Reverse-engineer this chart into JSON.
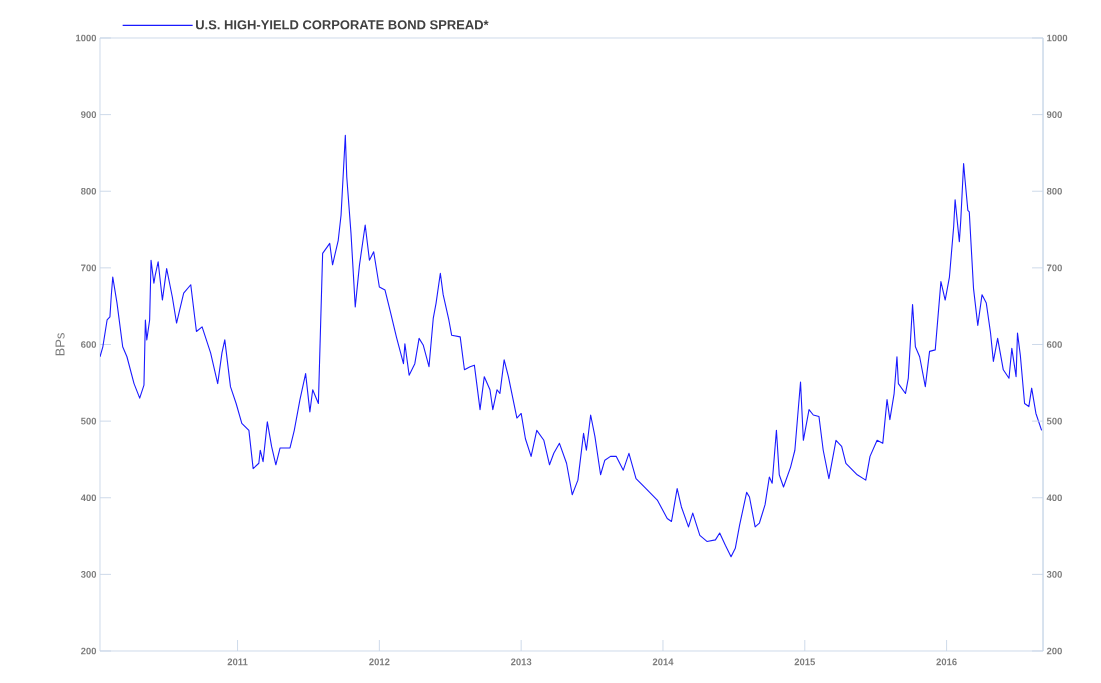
{
  "chart_data": {
    "type": "line",
    "ylabel": "BPs",
    "legend": "top left",
    "marker": "none",
    "line_style": "solid",
    "grid": false,
    "xlim": [
      2010.03,
      2016.68
    ],
    "xticks": [
      2011,
      2012,
      2013,
      2014,
      2015,
      2016
    ],
    "ylim": [
      200,
      1000
    ],
    "yticks": [
      200,
      300,
      400,
      500,
      600,
      700,
      800,
      900,
      1000
    ],
    "y2lim": [
      200,
      1000
    ],
    "y2ticks": [
      200,
      300,
      400,
      500,
      600,
      700,
      800,
      900,
      1000
    ],
    "series": [
      {
        "name": "U.S. HIGH-YIELD CORPORATE BOND SPREAD*",
        "color": "#1a1aff",
        "x": [
          2010.03,
          2010.05,
          2010.08,
          2010.1,
          2010.11,
          2010.12,
          2010.15,
          2010.19,
          2010.22,
          2010.27,
          2010.31,
          2010.34,
          2010.35,
          2010.36,
          2010.38,
          2010.39,
          2010.41,
          2010.42,
          2010.44,
          2010.47,
          2010.5,
          2010.54,
          2010.57,
          2010.62,
          2010.67,
          2010.71,
          2010.75,
          2010.81,
          2010.86,
          2010.89,
          2010.91,
          2010.95,
          2010.99,
          2011.03,
          2011.08,
          2011.11,
          2011.15,
          2011.16,
          2011.18,
          2011.21,
          2011.24,
          2011.27,
          2011.3,
          2011.37,
          2011.4,
          2011.44,
          2011.48,
          2011.51,
          2011.53,
          2011.57,
          2011.6,
          2011.65,
          2011.67,
          2011.71,
          2011.73,
          2011.76,
          2011.77,
          2011.8,
          2011.83,
          2011.85,
          2011.86,
          2011.9,
          2011.93,
          2011.96,
          2012.0,
          2012.04,
          2012.08,
          2012.12,
          2012.17,
          2012.18,
          2012.21,
          2012.25,
          2012.28,
          2012.31,
          2012.35,
          2012.38,
          2012.4,
          2012.43,
          2012.45,
          2012.49,
          2012.51,
          2012.57,
          2012.6,
          2012.64,
          2012.67,
          2012.71,
          2012.74,
          2012.78,
          2012.8,
          2012.83,
          2012.85,
          2012.88,
          2012.91,
          2012.97,
          2013.0,
          2013.03,
          2013.07,
          2013.11,
          2013.16,
          2013.2,
          2013.23,
          2013.27,
          2013.32,
          2013.36,
          2013.4,
          2013.44,
          2013.46,
          2013.49,
          2013.52,
          2013.56,
          2013.59,
          2013.63,
          2013.67,
          2013.72,
          2013.76,
          2013.81,
          2013.87,
          2013.96,
          2014.03,
          2014.06,
          2014.1,
          2014.13,
          2014.18,
          2014.21,
          2014.26,
          2014.31,
          2014.37,
          2014.4,
          2014.44,
          2014.48,
          2014.51,
          2014.54,
          2014.59,
          2014.61,
          2014.65,
          2014.68,
          2014.72,
          2014.75,
          2014.77,
          2014.8,
          2014.82,
          2014.85,
          2014.9,
          2014.93,
          2014.97,
          2014.99,
          2015.03,
          2015.06,
          2015.1,
          2015.13,
          2015.17,
          2015.22,
          2015.26,
          2015.29,
          2015.37,
          2015.43,
          2015.46,
          2015.51,
          2015.55,
          2015.58,
          2015.6,
          2015.63,
          2015.65,
          2015.66,
          2015.71,
          2015.73,
          2015.76,
          2015.78,
          2015.81,
          2015.85,
          2015.88,
          2015.92,
          2015.96,
          2015.99,
          2016.02,
          2016.05,
          2016.06,
          2016.09,
          2016.1,
          2016.12,
          2016.13,
          2016.15,
          2016.16,
          2016.19,
          2016.22,
          2016.25,
          2016.28,
          2016.31,
          2016.33,
          2016.36,
          2016.4,
          2016.44,
          2016.46,
          2016.49,
          2016.5,
          2016.52,
          2016.55,
          2016.58,
          2016.6,
          2016.63,
          2016.67
        ],
        "values": [
          584,
          597,
          632,
          636,
          665,
          688,
          654,
          597,
          584,
          549,
          530,
          547,
          632,
          606,
          632,
          710,
          680,
          691,
          708,
          658,
          699,
          662,
          628,
          667,
          678,
          617,
          623,
          589,
          549,
          589,
          606,
          545,
          523,
          497,
          488,
          438,
          445,
          462,
          447,
          499,
          467,
          443,
          465,
          465,
          488,
          528,
          562,
          512,
          541,
          523,
          719,
          732,
          704,
          736,
          769,
          873,
          819,
          745,
          649,
          686,
          704,
          756,
          710,
          721,
          675,
          671,
          641,
          610,
          575,
          601,
          560,
          575,
          608,
          599,
          571,
          634,
          654,
          693,
          665,
          632,
          612,
          610,
          567,
          571,
          573,
          515,
          558,
          541,
          515,
          541,
          536,
          580,
          558,
          504,
          510,
          477,
          454,
          488,
          475,
          443,
          458,
          471,
          445,
          404,
          423,
          484,
          462,
          508,
          480,
          430,
          449,
          454,
          454,
          436,
          458,
          425,
          414,
          397,
          373,
          369,
          412,
          388,
          362,
          380,
          351,
          343,
          345,
          354,
          338,
          323,
          334,
          364,
          407,
          401,
          362,
          367,
          391,
          427,
          419,
          488,
          430,
          414,
          440,
          462,
          551,
          475,
          515,
          508,
          506,
          462,
          425,
          475,
          467,
          445,
          430,
          423,
          454,
          475,
          471,
          528,
          502,
          536,
          584,
          549,
          536,
          556,
          652,
          597,
          584,
          545,
          591,
          593,
          682,
          658,
          688,
          754,
          789,
          734,
          762,
          836,
          815,
          775,
          773,
          673,
          625,
          665,
          654,
          615,
          578,
          608,
          567,
          556,
          595,
          558,
          615,
          586,
          523,
          519,
          543,
          510,
          488
        ]
      }
    ]
  }
}
